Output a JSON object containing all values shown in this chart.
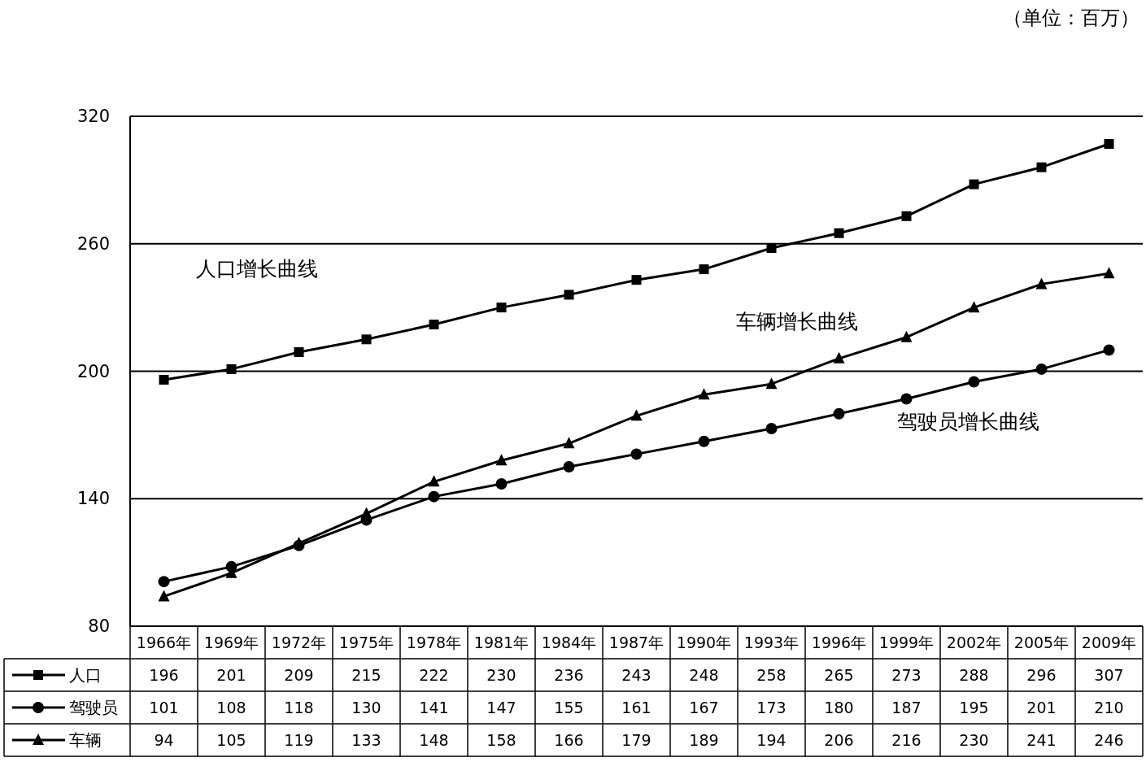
{
  "chart_data": {
    "type": "line",
    "categories": [
      "1966年",
      "1969年",
      "1972年",
      "1975年",
      "1978年",
      "1981年",
      "1984年",
      "1987年",
      "1990年",
      "1993年",
      "1996年",
      "1999年",
      "2002年",
      "2005年",
      "2009年"
    ],
    "series": [
      {
        "name": "人口",
        "color": "#000000",
        "marker": "square",
        "values": [
          196,
          201,
          209,
          215,
          222,
          230,
          236,
          243,
          248,
          258,
          265,
          273,
          288,
          296,
          307
        ]
      },
      {
        "name": "驾驶员",
        "color": "#000000",
        "marker": "circle",
        "values": [
          101,
          108,
          118,
          130,
          141,
          147,
          155,
          161,
          167,
          173,
          180,
          187,
          195,
          201,
          210
        ]
      },
      {
        "name": "车辆",
        "color": "#000000",
        "marker": "triangle",
        "values": [
          94,
          105,
          119,
          133,
          148,
          158,
          166,
          179,
          189,
          194,
          206,
          216,
          230,
          241,
          246
        ]
      }
    ],
    "ylim": [
      80,
      320
    ],
    "yticks": [
      80,
      140,
      200,
      260,
      320
    ],
    "grid": "y",
    "data_labels": true,
    "legend": "bottom left",
    "annotations": [
      "（单位：百万）",
      "人口增长曲线",
      "车辆增长曲线",
      "驾驶员增长曲线"
    ]
  }
}
